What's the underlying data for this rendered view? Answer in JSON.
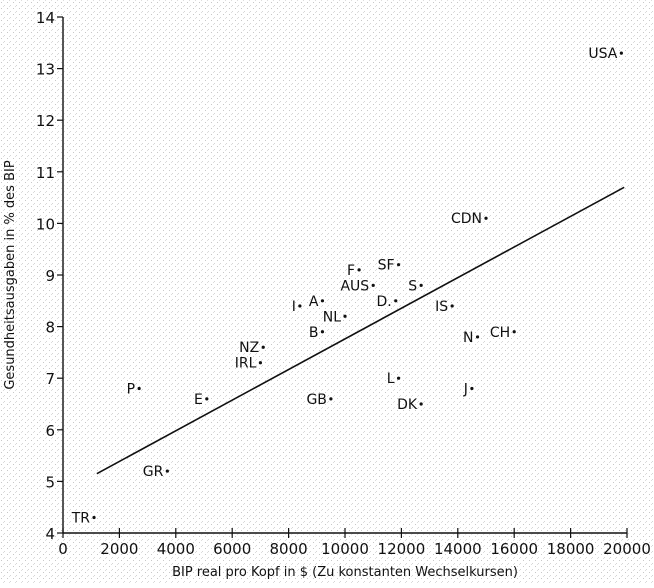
{
  "chart_data": {
    "type": "scatter",
    "xlabel": "BIP real pro Kopf in $ (Zu konstanten Wechselkursen)",
    "ylabel": "Gesundheitsausgaben in % des BIP",
    "xlim": [
      0,
      20000
    ],
    "ylim": [
      4,
      14
    ],
    "xticks": [
      0,
      2000,
      4000,
      6000,
      8000,
      10000,
      12000,
      14000,
      16000,
      18000,
      20000
    ],
    "yticks": [
      4,
      5,
      6,
      7,
      8,
      9,
      10,
      11,
      12,
      13,
      14
    ],
    "grid": false,
    "points": [
      {
        "label": "USA",
        "x": 19800,
        "y": 13.3
      },
      {
        "label": "CDN",
        "x": 15000,
        "y": 10.1
      },
      {
        "label": "F",
        "x": 10500,
        "y": 9.1
      },
      {
        "label": "SF",
        "x": 11900,
        "y": 9.2
      },
      {
        "label": "AUS",
        "x": 11000,
        "y": 8.8
      },
      {
        "label": "S",
        "x": 12700,
        "y": 8.8
      },
      {
        "label": "D.",
        "x": 11800,
        "y": 8.5
      },
      {
        "label": "IS",
        "x": 13800,
        "y": 8.4
      },
      {
        "label": "A",
        "x": 9200,
        "y": 8.5
      },
      {
        "label": "I",
        "x": 8400,
        "y": 8.4
      },
      {
        "label": "NL",
        "x": 10000,
        "y": 8.2
      },
      {
        "label": "B",
        "x": 9200,
        "y": 7.9
      },
      {
        "label": "N",
        "x": 14700,
        "y": 7.8
      },
      {
        "label": "CH",
        "x": 16000,
        "y": 7.9
      },
      {
        "label": "NZ",
        "x": 7100,
        "y": 7.6
      },
      {
        "label": "IRL",
        "x": 7000,
        "y": 7.3
      },
      {
        "label": "L",
        "x": 11900,
        "y": 7.0
      },
      {
        "label": "J",
        "x": 14500,
        "y": 6.8
      },
      {
        "label": "P",
        "x": 2700,
        "y": 6.8
      },
      {
        "label": "E",
        "x": 5100,
        "y": 6.6
      },
      {
        "label": "GB",
        "x": 9500,
        "y": 6.6
      },
      {
        "label": "DK",
        "x": 12700,
        "y": 6.5
      },
      {
        "label": "GR",
        "x": 3700,
        "y": 5.2
      },
      {
        "label": "TR",
        "x": 1100,
        "y": 4.3
      }
    ],
    "trendline": {
      "x": [
        1200,
        19900
      ],
      "y": [
        5.15,
        10.7
      ]
    }
  }
}
